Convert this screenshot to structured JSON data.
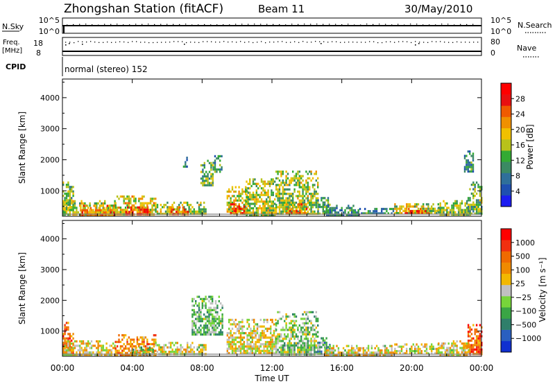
{
  "header": {
    "title": "Zhongshan Station (fitACF)",
    "beam": "Beam 11",
    "date": "30/May/2010"
  },
  "sky_panel": {
    "left_label": "N.Sky",
    "left_ticks": [
      "10^5",
      "10^0"
    ],
    "right_ticks": [
      "10^5",
      "10^0"
    ],
    "right_label": "N.Search"
  },
  "freq_panel": {
    "left_label_1": "Freq.",
    "left_label_2": "[MHz]",
    "left_ticks": [
      "18",
      "8"
    ],
    "right_ticks": [
      "80",
      "0"
    ],
    "right_label": "Nave"
  },
  "cpid": {
    "label": "CPID",
    "text": "normal (stereo) 152"
  },
  "x_axis": {
    "label": "Time UT",
    "ticks": [
      "00:00",
      "04:00",
      "08:00",
      "12:00",
      "16:00",
      "20:00",
      "00:00"
    ]
  },
  "colors": {
    "power_scale": [
      "#1c1cf0",
      "#1f4fb0",
      "#2f6f9a",
      "#3b8a63",
      "#33aa33",
      "#b8c21a",
      "#f0c000",
      "#f09000",
      "#f05a00",
      "#e81010",
      "#ff0000"
    ],
    "velocity_scale": [
      "#1030d0",
      "#2a5fc0",
      "#2f7f6a",
      "#3aa545",
      "#77d53a",
      "#c0c0c0",
      "#f2b800",
      "#f08a00",
      "#f06a00",
      "#f03010",
      "#ff0000"
    ]
  },
  "chart_data": [
    {
      "type": "heatmap",
      "panel": "power",
      "ylabel": "Slant Range [km]",
      "yticks": [
        1000,
        2000,
        3000,
        4000
      ],
      "ylim": [
        180,
        4600
      ],
      "xlim": [
        0,
        24
      ],
      "colorbar": {
        "label": "Power [dB]",
        "ticks": [
          "28",
          "24",
          "20",
          "16",
          "12",
          "8",
          "4"
        ],
        "range": [
          0,
          32
        ]
      },
      "regions": [
        {
          "t0": 0.0,
          "t1": 0.6,
          "r0": 250,
          "r1": 1300,
          "v": 14
        },
        {
          "t0": 0.0,
          "t1": 3.0,
          "r0": 250,
          "r1": 700,
          "v": 16
        },
        {
          "t0": 1.0,
          "t1": 3.0,
          "r0": 250,
          "r1": 550,
          "v": 22
        },
        {
          "t0": 3.0,
          "t1": 5.3,
          "r0": 250,
          "r1": 850,
          "v": 18
        },
        {
          "t0": 3.6,
          "t1": 5.0,
          "r0": 250,
          "r1": 500,
          "v": 26
        },
        {
          "t0": 5.3,
          "t1": 8.2,
          "r0": 250,
          "r1": 650,
          "v": 15
        },
        {
          "t0": 6.1,
          "t1": 7.2,
          "r0": 280,
          "r1": 500,
          "v": 24
        },
        {
          "t0": 7.9,
          "t1": 8.6,
          "r0": 1200,
          "r1": 2000,
          "v": 13
        },
        {
          "t0": 8.6,
          "t1": 9.1,
          "r0": 1600,
          "r1": 2150,
          "v": 10
        },
        {
          "t0": 9.4,
          "t1": 10.6,
          "r0": 250,
          "r1": 1150,
          "v": 17
        },
        {
          "t0": 9.6,
          "t1": 10.4,
          "r0": 250,
          "r1": 600,
          "v": 27
        },
        {
          "t0": 10.5,
          "t1": 12.2,
          "r0": 250,
          "r1": 1400,
          "v": 16
        },
        {
          "t0": 12.2,
          "t1": 14.6,
          "r0": 250,
          "r1": 1650,
          "v": 15
        },
        {
          "t0": 12.8,
          "t1": 14.0,
          "r0": 250,
          "r1": 600,
          "v": 23
        },
        {
          "t0": 14.6,
          "t1": 15.3,
          "r0": 250,
          "r1": 800,
          "v": 12
        },
        {
          "t0": 15.0,
          "t1": 17.0,
          "r0": 250,
          "r1": 550,
          "v": 9
        },
        {
          "t0": 17.0,
          "t1": 19.0,
          "r0": 250,
          "r1": 450,
          "v": 9
        },
        {
          "t0": 19.0,
          "t1": 21.5,
          "r0": 250,
          "r1": 600,
          "v": 16
        },
        {
          "t0": 19.6,
          "t1": 21.0,
          "r0": 260,
          "r1": 450,
          "v": 25
        },
        {
          "t0": 21.5,
          "t1": 23.4,
          "r0": 250,
          "r1": 700,
          "v": 14
        },
        {
          "t0": 23.2,
          "t1": 24.0,
          "r0": 250,
          "r1": 1300,
          "v": 13
        },
        {
          "t0": 23.0,
          "t1": 23.5,
          "r0": 1600,
          "r1": 2300,
          "v": 10
        },
        {
          "t0": 6.9,
          "t1": 7.1,
          "r0": 1800,
          "r1": 2100,
          "v": 9
        }
      ]
    },
    {
      "type": "heatmap",
      "panel": "velocity",
      "ylabel": "Slant Range [km]",
      "yticks": [
        1000,
        2000,
        3000,
        4000
      ],
      "ylim": [
        180,
        4600
      ],
      "xlim": [
        0,
        24
      ],
      "colorbar": {
        "label": "Velocity [m s⁻¹]",
        "ticks": [
          "1000",
          "500",
          "100",
          "25",
          "−25",
          "−100",
          "−500",
          "−1000"
        ],
        "range": [
          -1200,
          1200
        ]
      },
      "regions": [
        {
          "t0": 0.0,
          "t1": 0.6,
          "r0": 250,
          "r1": 1300,
          "v": 700
        },
        {
          "t0": 0.0,
          "t1": 3.0,
          "r0": 250,
          "r1": 700,
          "v": 120
        },
        {
          "t0": 3.0,
          "t1": 5.3,
          "r0": 250,
          "r1": 900,
          "v": 500
        },
        {
          "t0": 4.0,
          "t1": 5.2,
          "r0": 250,
          "r1": 500,
          "v": -300
        },
        {
          "t0": 5.3,
          "t1": 8.2,
          "r0": 250,
          "r1": 650,
          "v": 60
        },
        {
          "t0": 7.4,
          "t1": 9.2,
          "r0": 900,
          "r1": 2150,
          "v": -300
        },
        {
          "t0": 9.4,
          "t1": 12.2,
          "r0": 250,
          "r1": 1400,
          "v": 100
        },
        {
          "t0": 12.2,
          "t1": 14.6,
          "r0": 250,
          "r1": 1650,
          "v": -200
        },
        {
          "t0": 14.6,
          "t1": 15.3,
          "r0": 250,
          "r1": 800,
          "v": -400
        },
        {
          "t0": 15.0,
          "t1": 19.0,
          "r0": 250,
          "r1": 550,
          "v": 60
        },
        {
          "t0": 19.0,
          "t1": 21.5,
          "r0": 250,
          "r1": 600,
          "v": 30
        },
        {
          "t0": 21.5,
          "t1": 23.4,
          "r0": 250,
          "r1": 700,
          "v": 90
        },
        {
          "t0": 23.2,
          "t1": 24.0,
          "r0": 250,
          "r1": 1300,
          "v": 700
        }
      ]
    }
  ]
}
